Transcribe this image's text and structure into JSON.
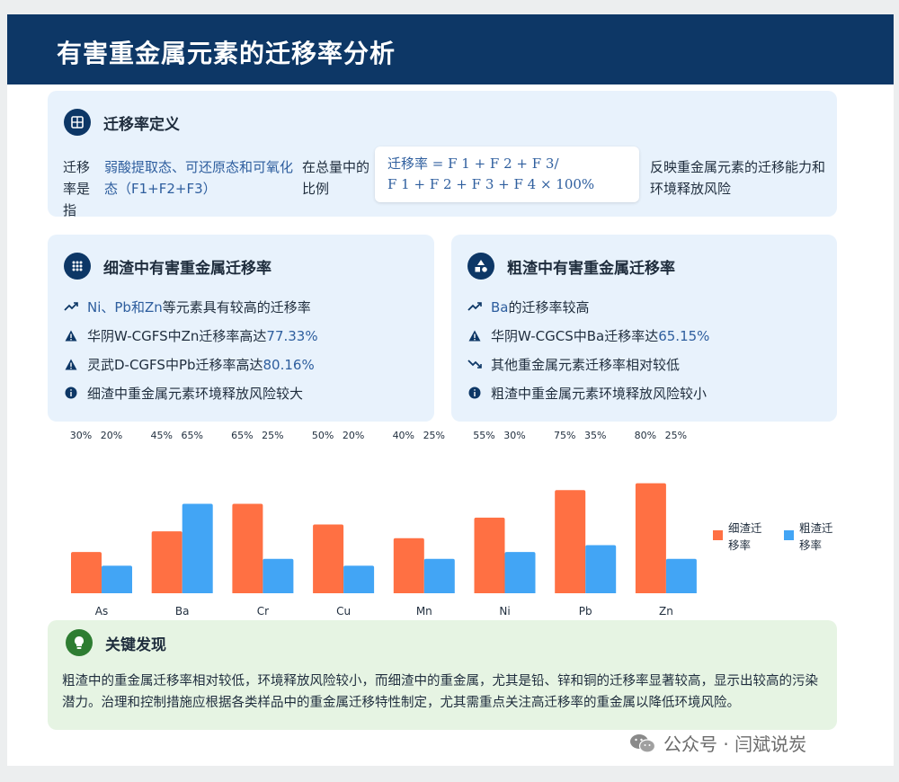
{
  "header": {
    "title": "有害重金属元素的迁移率分析"
  },
  "definition": {
    "title": "迁移率定义",
    "left_label": "迁移率是指",
    "highlight": "弱酸提取态、可还原态和可氧化态（F1+F2+F3）",
    "suffix": "在总量中的比例",
    "formula_line1": "迁移率 = F 1 +  F 2 +  F 3/",
    "formula_line2": "F 1 +  F 2 +  F 3 +  F 4 × 100%",
    "right_text": "反映重金属元素的迁移能力和环境释放风险",
    "icon": "grid-icon"
  },
  "fine": {
    "title": "细渣中有害重金属迁移率",
    "icon": "dots-icon",
    "items": [
      {
        "icon": "trend-up-icon",
        "parts": [
          "",
          "Ni、Pb和Zn",
          "等元素具有较高的迁移率"
        ]
      },
      {
        "icon": "warning-icon",
        "parts": [
          "华阴W-CGFS中Zn迁移率高达",
          "77.33%",
          ""
        ]
      },
      {
        "icon": "warning-icon",
        "parts": [
          "灵武D-CGFS中Pb迁移率高达",
          "80.16%",
          ""
        ]
      },
      {
        "icon": "info-icon",
        "parts": [
          "细渣中重金属元素环境释放风险较大",
          "",
          ""
        ]
      }
    ]
  },
  "coarse": {
    "title": "粗渣中有害重金属迁移率",
    "icon": "shapes-icon",
    "items": [
      {
        "icon": "trend-up-icon",
        "parts": [
          "",
          "Ba",
          "的迁移率较高"
        ]
      },
      {
        "icon": "warning-icon",
        "parts": [
          "华阴W-CGCS中Ba迁移率达",
          "65.15%",
          ""
        ]
      },
      {
        "icon": "trend-down-icon",
        "parts": [
          "其他重金属元素迁移率相对较低",
          "",
          ""
        ]
      },
      {
        "icon": "info-icon",
        "parts": [
          "粗渣中重金属元素环境释放风险较小",
          "",
          ""
        ]
      }
    ]
  },
  "chart_data": {
    "type": "bar",
    "categories": [
      "As",
      "Ba",
      "Cr",
      "Cu",
      "Mn",
      "Ni",
      "Pb",
      "Zn"
    ],
    "series": [
      {
        "name": "细渣迁移率",
        "values": [
          30,
          45,
          65,
          50,
          40,
          55,
          75,
          80
        ],
        "color": "#ff7043"
      },
      {
        "name": "粗渣迁移率",
        "values": [
          20,
          65,
          25,
          20,
          25,
          30,
          35,
          25
        ],
        "color": "#42a5f5"
      }
    ],
    "value_labels": [
      [
        "30%",
        "20%"
      ],
      [
        "45%",
        "65%"
      ],
      [
        "65%",
        "25%"
      ],
      [
        "50%",
        "20%"
      ],
      [
        "40%",
        "25%"
      ],
      [
        "55%",
        "30%"
      ],
      [
        "75%",
        "35%"
      ],
      [
        "80%",
        "25%"
      ]
    ],
    "ylim": [
      0,
      100
    ],
    "legend_position": "right",
    "grid": false
  },
  "key_findings": {
    "title": "关键发现",
    "icon": "lightbulb-icon",
    "text": "粗渣中的重金属迁移率相对较低，环境释放风险较小，而细渣中的重金属，尤其是铅、锌和铜的迁移率显著较高，显示出较高的污染潜力。治理和控制措施应根据各类样品中的重金属迁移特性制定，尤其需重点关注高迁移率的重金属以降低环境风险。"
  },
  "watermark": {
    "text": "公众号 · 闫斌说炭",
    "icon": "wechat-icon"
  }
}
